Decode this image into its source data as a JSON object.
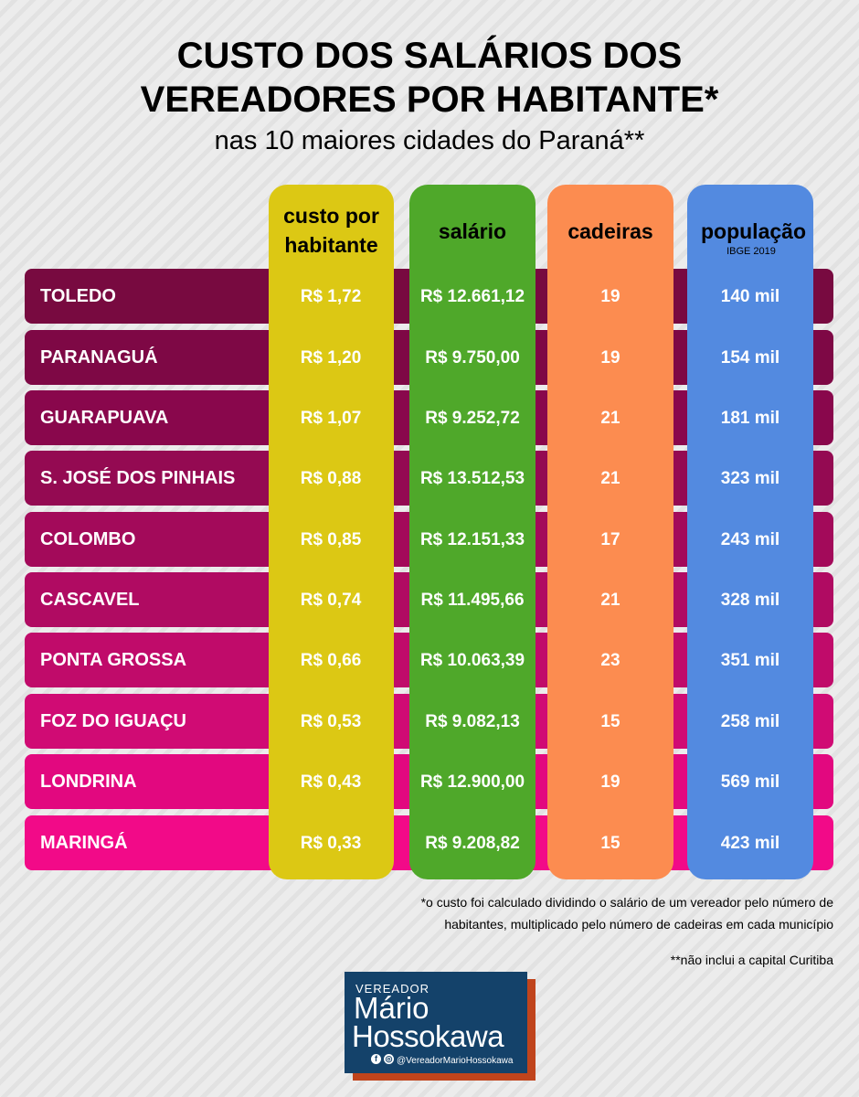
{
  "chart_data": {
    "type": "table",
    "title_line1": "CUSTO DOS SALÁRIOS DOS",
    "title_line2": "VEREADORES POR HABITANTE*",
    "subtitle": "nas 10 maiores cidades do Paraná**",
    "columns": {
      "custo_line1": "custo por",
      "custo_line2": "habitante",
      "salario": "salário",
      "cadeiras": "cadeiras",
      "populacao": "população",
      "populacao_note": "IBGE 2019"
    },
    "rows": [
      {
        "city": "TOLEDO",
        "custo": "R$ 1,72",
        "salario": "R$ 12.661,12",
        "cadeiras": "19",
        "populacao": "140 mil"
      },
      {
        "city": "PARANAGUÁ",
        "custo": "R$ 1,20",
        "salario": "R$ 9.750,00",
        "cadeiras": "19",
        "populacao": "154 mil"
      },
      {
        "city": "GUARAPUAVA",
        "custo": "R$ 1,07",
        "salario": "R$ 9.252,72",
        "cadeiras": "21",
        "populacao": "181 mil"
      },
      {
        "city": "S. JOSÉ DOS PINHAIS",
        "custo": "R$ 0,88",
        "salario": "R$ 13.512,53",
        "cadeiras": "21",
        "populacao": "323 mil"
      },
      {
        "city": "COLOMBO",
        "custo": "R$ 0,85",
        "salario": "R$ 12.151,33",
        "cadeiras": "17",
        "populacao": "243 mil"
      },
      {
        "city": "CASCAVEL",
        "custo": "R$ 0,74",
        "salario": "R$ 11.495,66",
        "cadeiras": "21",
        "populacao": "328 mil"
      },
      {
        "city": "PONTA GROSSA",
        "custo": "R$ 0,66",
        "salario": "R$ 10.063,39",
        "cadeiras": "23",
        "populacao": "351 mil"
      },
      {
        "city": "FOZ DO IGUAÇU",
        "custo": "R$ 0,53",
        "salario": "R$ 9.082,13",
        "cadeiras": "15",
        "populacao": "258 mil"
      },
      {
        "city": "LONDRINA",
        "custo": "R$ 0,43",
        "salario": "R$ 12.900,00",
        "cadeiras": "19",
        "populacao": "569 mil"
      },
      {
        "city": "MARINGÁ",
        "custo": "R$ 0,33",
        "salario": "R$ 9.208,82",
        "cadeiras": "15",
        "populacao": "423 mil"
      }
    ],
    "row_colors": [
      "#780a40",
      "#7e0845",
      "#89074c",
      "#940a52",
      "#a30a5a",
      "#b00b62",
      "#c00b6a",
      "#d00b74",
      "#e2087f",
      "#f20a88"
    ],
    "column_colors": {
      "custo": "#dcc814",
      "salario": "#4fa82a",
      "cadeiras": "#fc8c50",
      "populacao": "#538ae0"
    }
  },
  "footnotes": {
    "note1_line1": "*o custo foi calculado dividindo o salário de um vereador pelo número de",
    "note1_line2": "habitantes, multiplicado pelo número de cadeiras em cada município",
    "note2": "**não inclui a capital Curitiba"
  },
  "logo": {
    "line1": "VEREADOR",
    "line2": "Mário",
    "line3": "Hossokawa",
    "social_handle": "@VereadorMarioHossokawa",
    "icons": [
      "facebook-icon",
      "instagram-icon"
    ]
  }
}
